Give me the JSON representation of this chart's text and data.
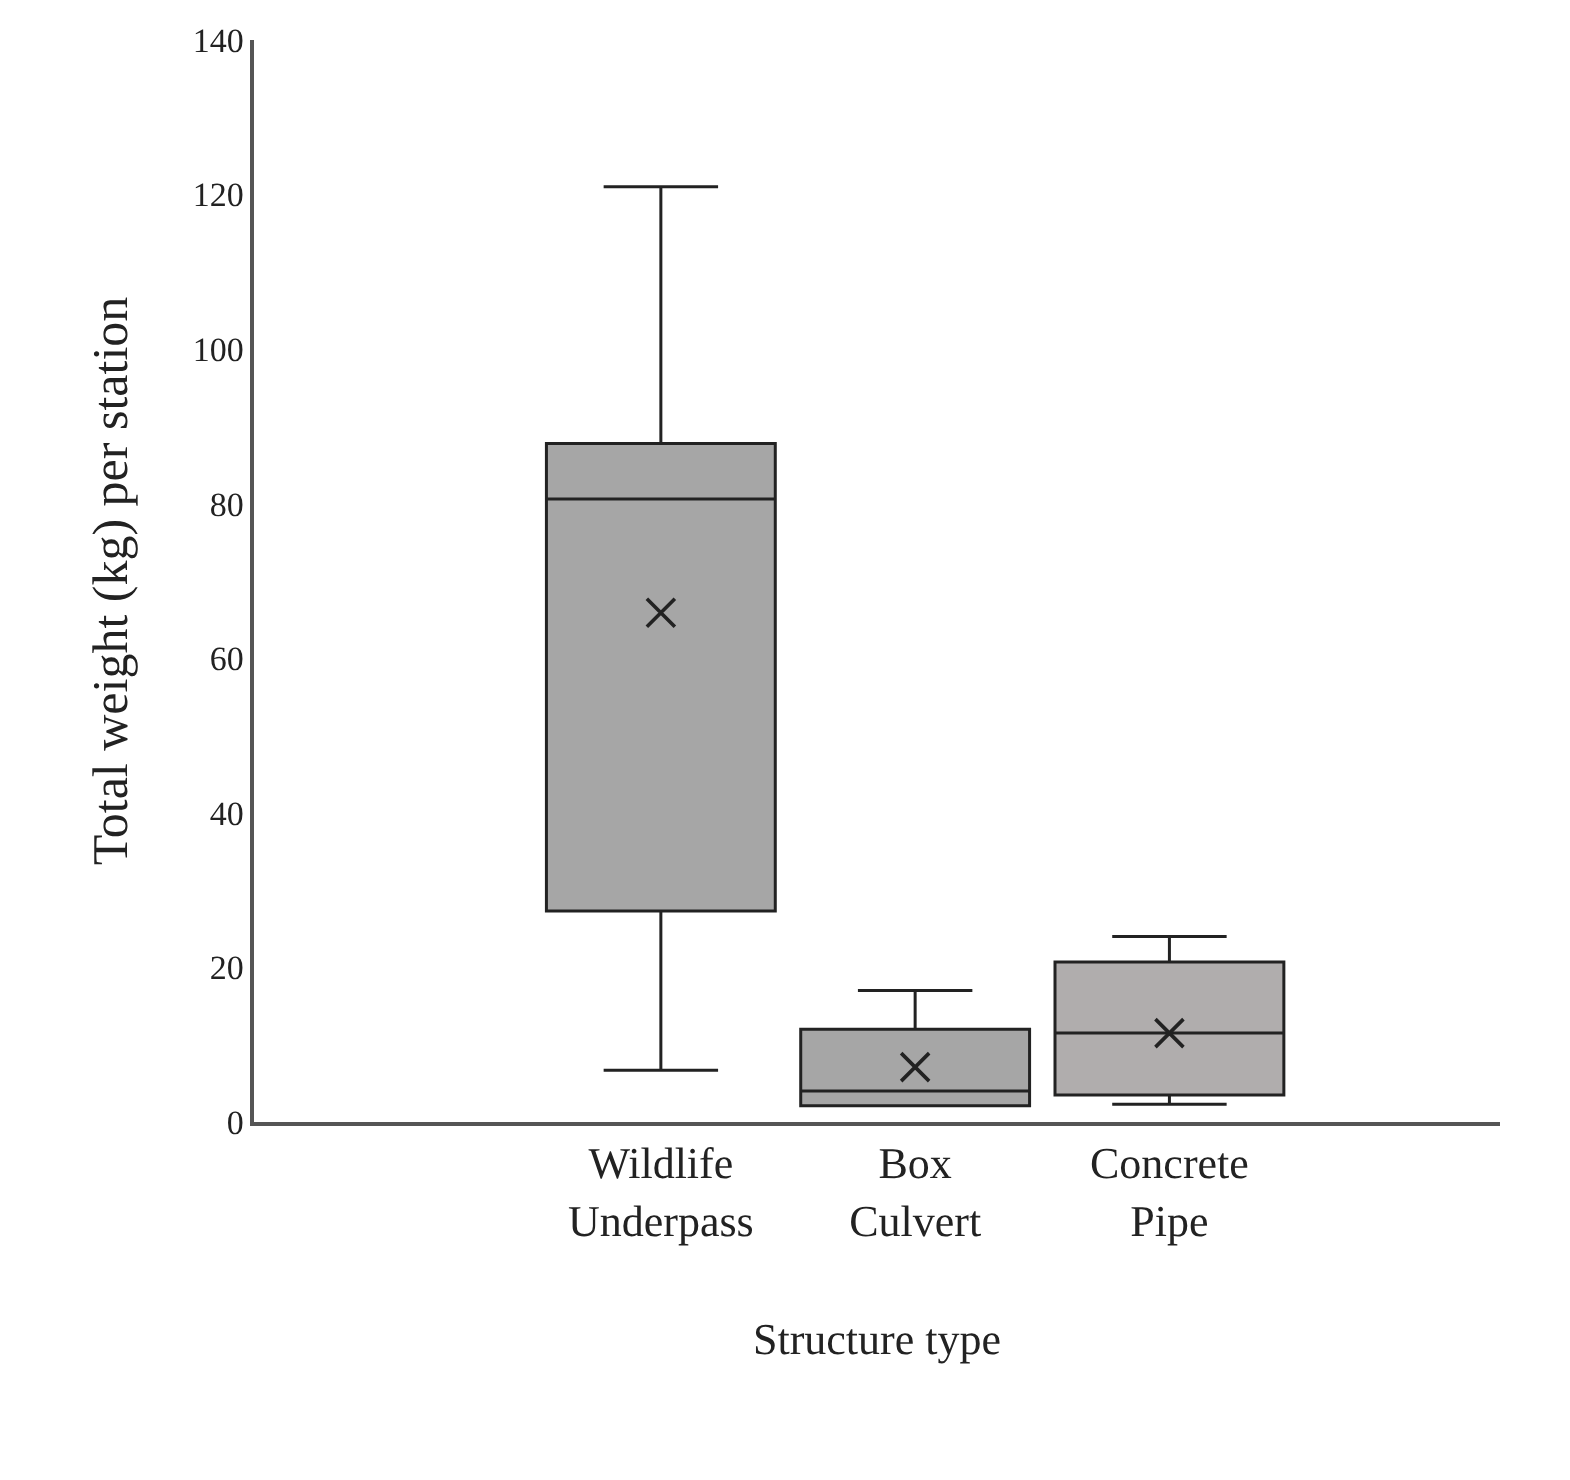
{
  "chart_data": {
    "type": "box",
    "xlabel": "Structure type",
    "ylabel": "Total weight (kg) per station",
    "categories": [
      "Wildlife\nUnderpass",
      "Box\nCulvert",
      "Concrete\nPipe"
    ],
    "boxes": [
      {
        "low": 6.7,
        "q1": 27.3,
        "median": 80.6,
        "q3": 87.8,
        "high": 121,
        "mean": 65.9
      },
      {
        "low": 2.1,
        "q1": 2.1,
        "median": 4,
        "q3": 12,
        "high": 17,
        "mean": 7.1
      },
      {
        "low": 2.3,
        "q1": 3.5,
        "median": 11.5,
        "q3": 20.7,
        "high": 24,
        "mean": 11.5
      }
    ],
    "colors": [
      "#a6a6a6",
      "#a6a6a6",
      "#b0adad"
    ],
    "ylim": [
      0,
      140
    ],
    "yticks": [
      0,
      20,
      40,
      60,
      80,
      100,
      120,
      140
    ],
    "marker": "cross"
  }
}
